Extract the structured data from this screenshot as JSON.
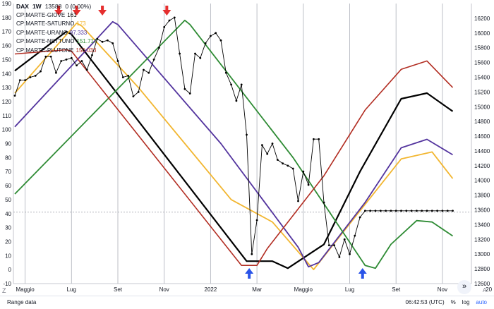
{
  "header": {
    "symbol": "DAX",
    "interval": "1W",
    "price": "13588",
    "change": "0 (0.00%)"
  },
  "legend": [
    {
      "name": "CP:MARTE-GIOVE",
      "value": "161",
      "color": "#000000"
    },
    {
      "name": "CP:MARTE-SATURNO",
      "value": "173",
      "color": "#f2b630"
    },
    {
      "name": "CP:MARTE-URANO",
      "value": "97.333",
      "color": "#53349e"
    },
    {
      "name": "CP:MARTE-NETTUNO",
      "value": "151.717",
      "color": "#2e8b34"
    },
    {
      "name": "CP:MARTE-PLUTONE",
      "value": "150.033",
      "color": "#b22d22"
    }
  ],
  "footer": {
    "range_label": "Range data",
    "time": "06:42:53 (UTC)",
    "percent": "%",
    "log": "log",
    "auto": "auto"
  },
  "chart_data": {
    "type": "line",
    "x_unit": "week index (0 = first week shown, approx. late Apr 2021)",
    "x_range": [
      0,
      85
    ],
    "x_tick_labels": [
      {
        "x": 2,
        "label": "Maggio"
      },
      {
        "x": 11,
        "label": "Lug"
      },
      {
        "x": 20,
        "label": "Set"
      },
      {
        "x": 29,
        "label": "Nov"
      },
      {
        "x": 38,
        "label": "2022"
      },
      {
        "x": 47,
        "label": "Mar"
      },
      {
        "x": 56,
        "label": "Maggio"
      },
      {
        "x": 65,
        "label": "Lug"
      },
      {
        "x": 74,
        "label": "Set"
      },
      {
        "x": 83,
        "label": "Nov"
      },
      {
        "x": 92,
        "label": "20"
      }
    ],
    "left_axis": {
      "min": -10,
      "max": 190,
      "ticks": [
        -10,
        0,
        10,
        20,
        30,
        40,
        50,
        60,
        70,
        80,
        90,
        100,
        110,
        120,
        130,
        140,
        150,
        160,
        170,
        180,
        190
      ]
    },
    "right_axis": {
      "min": 12600,
      "max": 16400,
      "ticks": [
        12600,
        12800,
        13000,
        13200,
        13400,
        13600,
        13800,
        14000,
        14200,
        14400,
        14600,
        14800,
        15000,
        15200,
        15400,
        15600,
        15800,
        16000,
        16200
      ]
    },
    "reference_line": {
      "axis": "left",
      "value": 41
    },
    "series": [
      {
        "name": "CP:MARTE-GIOVE",
        "color": "#000000",
        "width": 2.2,
        "axis": "left",
        "points": [
          [
            0,
            142
          ],
          [
            10,
            170
          ],
          [
            11,
            168
          ],
          [
            45,
            6
          ],
          [
            50,
            6
          ],
          [
            53,
            1
          ],
          [
            60,
            18
          ],
          [
            67,
            70
          ],
          [
            75,
            122
          ],
          [
            80,
            126
          ],
          [
            85,
            113
          ]
        ]
      },
      {
        "name": "CP:MARTE-SATURNO",
        "color": "#f2b630",
        "width": 1.8,
        "axis": "left",
        "points": [
          [
            0,
            126
          ],
          [
            12,
            176
          ],
          [
            13,
            174
          ],
          [
            24,
            130
          ],
          [
            42,
            50
          ],
          [
            50,
            34
          ],
          [
            58,
            0
          ],
          [
            67,
            42
          ],
          [
            75,
            79
          ],
          [
            81,
            84
          ],
          [
            85,
            65
          ]
        ]
      },
      {
        "name": "CP:MARTE-URANO",
        "color": "#53349e",
        "width": 1.8,
        "axis": "left",
        "points": [
          [
            0,
            102
          ],
          [
            19,
            177
          ],
          [
            20,
            175
          ],
          [
            40,
            90
          ],
          [
            55,
            16
          ],
          [
            57,
            2
          ],
          [
            59,
            5
          ],
          [
            68,
            48
          ],
          [
            75,
            87
          ],
          [
            80,
            93
          ],
          [
            85,
            82
          ]
        ]
      },
      {
        "name": "CP:MARTE-NETTUNO",
        "color": "#2e8b34",
        "width": 1.8,
        "axis": "left",
        "points": [
          [
            0,
            54
          ],
          [
            33,
            178
          ],
          [
            34,
            175
          ],
          [
            54,
            80
          ],
          [
            68,
            3
          ],
          [
            70,
            1
          ],
          [
            73,
            18
          ],
          [
            78,
            35
          ],
          [
            81,
            34
          ],
          [
            85,
            24
          ]
        ]
      },
      {
        "name": "CP:MARTE-PLUTONE",
        "color": "#b22d22",
        "width": 1.6,
        "axis": "left",
        "points": [
          [
            0,
            154
          ],
          [
            10,
            157
          ],
          [
            11,
            156
          ],
          [
            44,
            3
          ],
          [
            47,
            3
          ],
          [
            49,
            15
          ],
          [
            60,
            67
          ],
          [
            68,
            114
          ],
          [
            75,
            143
          ],
          [
            80,
            149
          ],
          [
            85,
            130
          ]
        ]
      },
      {
        "name": "DAX",
        "color": "#000000",
        "width": 0.9,
        "axis": "right",
        "markers": true,
        "points": [
          [
            0,
            15150
          ],
          [
            1,
            15360
          ],
          [
            2,
            15360
          ],
          [
            3,
            15400
          ],
          [
            4,
            15420
          ],
          [
            5,
            15480
          ],
          [
            6,
            15680
          ],
          [
            7,
            15680
          ],
          [
            8,
            15460
          ],
          [
            9,
            15620
          ],
          [
            10,
            15640
          ],
          [
            11,
            15660
          ],
          [
            12,
            15560
          ],
          [
            13,
            15620
          ],
          [
            14,
            15500
          ],
          [
            15,
            15700
          ],
          [
            16,
            15920
          ],
          [
            17,
            15880
          ],
          [
            18,
            15900
          ],
          [
            19,
            15860
          ],
          [
            20,
            15620
          ],
          [
            21,
            15400
          ],
          [
            22,
            15420
          ],
          [
            23,
            15140
          ],
          [
            24,
            15200
          ],
          [
            25,
            15500
          ],
          [
            26,
            15460
          ],
          [
            27,
            15640
          ],
          [
            28,
            15800
          ],
          [
            29,
            16080
          ],
          [
            30,
            16170
          ],
          [
            31,
            16210
          ],
          [
            32,
            15720
          ],
          [
            33,
            15240
          ],
          [
            34,
            15180
          ],
          [
            35,
            15720
          ],
          [
            36,
            15660
          ],
          [
            37,
            15860
          ],
          [
            38,
            15960
          ],
          [
            39,
            16000
          ],
          [
            40,
            15900
          ],
          [
            41,
            15460
          ],
          [
            42,
            15300
          ],
          [
            43,
            15080
          ],
          [
            44,
            15300
          ],
          [
            45,
            14620
          ],
          [
            46,
            13000
          ],
          [
            47,
            13460
          ],
          [
            48,
            14480
          ],
          [
            49,
            14360
          ],
          [
            50,
            14500
          ],
          [
            51,
            14280
          ],
          [
            52,
            14230
          ],
          [
            53,
            14200
          ],
          [
            54,
            14160
          ],
          [
            55,
            13720
          ],
          [
            56,
            14120
          ],
          [
            57,
            13940
          ],
          [
            58,
            14560
          ],
          [
            59,
            14560
          ],
          [
            60,
            13700
          ],
          [
            61,
            13120
          ],
          [
            62,
            13120
          ],
          [
            63,
            12960
          ],
          [
            64,
            13200
          ],
          [
            65,
            13000
          ],
          [
            66,
            13250
          ],
          [
            67,
            13500
          ],
          [
            68,
            13588
          ],
          [
            85,
            13588
          ]
        ]
      }
    ],
    "arrows": [
      {
        "x": 8.5,
        "direction": "down",
        "color": "#e52e2e"
      },
      {
        "x": 12,
        "direction": "down",
        "color": "#e52e2e"
      },
      {
        "x": 17,
        "direction": "down",
        "color": "#e52e2e"
      },
      {
        "x": 29.5,
        "direction": "down",
        "color": "#e52e2e"
      },
      {
        "x": 45.5,
        "direction": "up",
        "color": "#2a54e8"
      },
      {
        "x": 67.5,
        "direction": "up",
        "color": "#2a54e8"
      }
    ]
  }
}
